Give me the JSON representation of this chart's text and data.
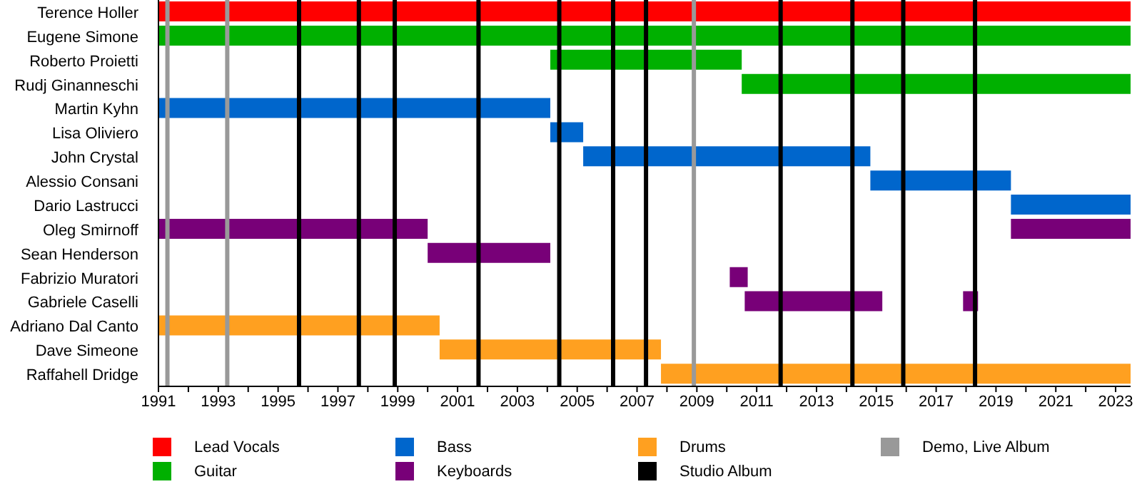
{
  "chart_data": {
    "type": "bar",
    "orientation": "horizontal",
    "categories": [
      "Terence Holler",
      "Eugene Simone",
      "Roberto Proietti",
      "Rudj Ginanneschi",
      "Martin Kyhn",
      "Lisa Oliviero",
      "John Crystal",
      "Alessio Consani",
      "Dario Lastrucci",
      "Oleg Smirnoff",
      "Sean Henderson",
      "Fabrizio Muratori",
      "Gabriele Caselli",
      "Adriano Dal Canto",
      "Dave Simeone",
      "Raffahell Dridge"
    ],
    "series": [
      {
        "name": "Lead Vocals",
        "color": "#ff0000",
        "base": [
          1991,
          null,
          null,
          null,
          null,
          null,
          null,
          null,
          null,
          null,
          null,
          null,
          null,
          null,
          null,
          null
        ],
        "values": [
          32.5,
          null,
          null,
          null,
          null,
          null,
          null,
          null,
          null,
          null,
          null,
          null,
          null,
          null,
          null,
          null
        ]
      },
      {
        "name": "Guitar",
        "color": "#00b000",
        "base": [
          null,
          1991,
          2004.1,
          2010.5,
          null,
          null,
          null,
          null,
          null,
          null,
          null,
          null,
          null,
          null,
          null,
          null
        ],
        "values": [
          null,
          32.5,
          6.4,
          13.0,
          null,
          null,
          null,
          null,
          null,
          null,
          null,
          null,
          null,
          null,
          null,
          null
        ]
      },
      {
        "name": "Bass",
        "color": "#0066cc",
        "base": [
          null,
          null,
          null,
          null,
          1991,
          2004.1,
          2005.2,
          2014.8,
          2019.5,
          null,
          null,
          null,
          null,
          null,
          null,
          null
        ],
        "values": [
          null,
          null,
          null,
          null,
          13.1,
          1.1,
          9.6,
          4.7,
          4.0,
          null,
          null,
          null,
          null,
          null,
          null,
          null
        ]
      },
      {
        "name": "Keyboards",
        "color": "#780078",
        "base": [
          null,
          null,
          null,
          null,
          null,
          null,
          null,
          null,
          null,
          1991,
          2000.0,
          2010.1,
          2010.6,
          null,
          null,
          null
        ],
        "values": [
          null,
          null,
          null,
          null,
          null,
          null,
          null,
          null,
          null,
          9.0,
          4.1,
          0.6,
          4.6,
          null,
          null,
          null
        ]
      },
      {
        "name": "Drums",
        "color": "#ffa020",
        "base": [
          null,
          null,
          null,
          null,
          null,
          null,
          null,
          null,
          null,
          null,
          null,
          null,
          null,
          1991,
          2000.4,
          2007.8
        ],
        "values": [
          null,
          null,
          null,
          null,
          null,
          null,
          null,
          null,
          null,
          null,
          null,
          null,
          null,
          9.4,
          7.4,
          15.7
        ]
      },
      {
        "color": "#780078",
        "base": [
          null,
          null,
          null,
          null,
          null,
          null,
          null,
          null,
          null,
          2019.5,
          null,
          null,
          2017.9,
          null,
          null,
          null
        ],
        "values": [
          null,
          null,
          null,
          null,
          null,
          null,
          null,
          null,
          null,
          4.0,
          null,
          null,
          0.5,
          null,
          null,
          null
        ]
      }
    ],
    "xlim": [
      1991,
      2023.5
    ],
    "xticks": [
      1991,
      {
        "value": 1992,
        "label": null
      },
      1993,
      {
        "value": 1994,
        "label": null
      },
      1995,
      {
        "value": 1996,
        "label": null
      },
      1997,
      {
        "value": 1998,
        "label": null
      },
      1999,
      {
        "value": 2000,
        "label": null
      },
      2001,
      {
        "value": 2002,
        "label": null
      },
      2003,
      {
        "value": 2004,
        "label": null
      },
      2005,
      {
        "value": 2006,
        "label": null
      },
      2007,
      {
        "value": 2008,
        "label": null
      },
      2009,
      {
        "value": 2010,
        "label": null
      },
      2011,
      {
        "value": 2012,
        "label": null
      },
      2013,
      {
        "value": 2014,
        "label": null
      },
      2015,
      {
        "value": 2016,
        "label": null
      },
      2017,
      {
        "value": 2018,
        "label": null
      },
      2019,
      {
        "value": 2020,
        "label": null
      },
      2021,
      {
        "value": 2022,
        "label": null
      },
      2023
    ],
    "ref_lines": [
      {
        "axis": "x",
        "value": 1995.7,
        "label": "Studio Album",
        "color": "#000000"
      },
      {
        "axis": "x",
        "value": 1997.7,
        "color": "#000000"
      },
      {
        "axis": "x",
        "value": 1998.9,
        "color": "#000000"
      },
      {
        "axis": "x",
        "value": 2001.7,
        "color": "#000000"
      },
      {
        "axis": "x",
        "value": 2004.4,
        "color": "#000000"
      },
      {
        "axis": "x",
        "value": 2006.2,
        "color": "#000000"
      },
      {
        "axis": "x",
        "value": 2007.3,
        "color": "#000000"
      },
      {
        "axis": "x",
        "value": 2011.8,
        "color": "#000000"
      },
      {
        "axis": "x",
        "value": 2014.2,
        "color": "#000000"
      },
      {
        "axis": "x",
        "value": 2015.9,
        "color": "#000000"
      },
      {
        "axis": "x",
        "value": 2018.3,
        "color": "#000000"
      },
      {
        "axis": "x",
        "value": 1991.3,
        "label": "Demo, Live Album",
        "color": "#999999"
      },
      {
        "axis": "x",
        "value": 1993.3,
        "color": "#999999"
      },
      {
        "axis": "x",
        "value": 2008.9,
        "color": "#999999"
      }
    ],
    "legend": "bottom"
  }
}
